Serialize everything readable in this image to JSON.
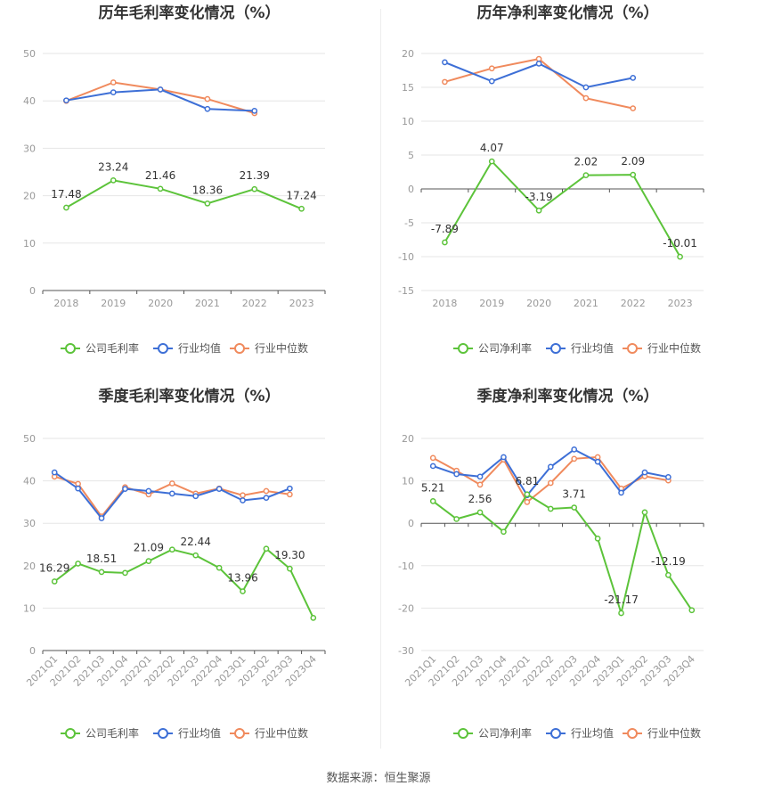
{
  "charts": [
    {
      "id": "p0",
      "title": "历年毛利率变化情况（%）",
      "type": "line",
      "categories": [
        "2018",
        "2019",
        "2020",
        "2021",
        "2022",
        "2023"
      ],
      "ylim": [
        0,
        50
      ],
      "yticks": [
        0,
        10,
        20,
        30,
        40,
        50
      ],
      "series": [
        {
          "name": "公司毛利率",
          "color": "#5cc33a",
          "values": [
            17.48,
            23.24,
            21.46,
            18.36,
            21.39,
            17.24
          ],
          "labels": [
            "17.48",
            "23.24",
            "21.46",
            "18.36",
            "21.39",
            "17.24"
          ]
        },
        {
          "name": "行业均值",
          "color": "#3d6fd6",
          "values": [
            40.1,
            41.8,
            42.4,
            38.3,
            37.9,
            null
          ]
        },
        {
          "name": "行业中位数",
          "color": "#f08a5d",
          "values": [
            40.0,
            43.9,
            42.4,
            40.4,
            37.4,
            null
          ]
        }
      ]
    },
    {
      "id": "p1",
      "title": "历年净利率变化情况（%）",
      "type": "line",
      "categories": [
        "2018",
        "2019",
        "2020",
        "2021",
        "2022",
        "2023"
      ],
      "ylim": [
        -15,
        20
      ],
      "yticks": [
        -15,
        -10,
        -5,
        0,
        5,
        10,
        15,
        20
      ],
      "series": [
        {
          "name": "公司净利率",
          "color": "#5cc33a",
          "values": [
            -7.89,
            4.07,
            -3.19,
            2.02,
            2.09,
            -10.01
          ],
          "labels": [
            "-7.89",
            "4.07",
            "-3.19",
            "2.02",
            "2.09",
            "-10.01"
          ]
        },
        {
          "name": "行业均值",
          "color": "#3d6fd6",
          "values": [
            18.7,
            15.9,
            18.5,
            15.0,
            16.4,
            null
          ]
        },
        {
          "name": "行业中位数",
          "color": "#f08a5d",
          "values": [
            15.8,
            17.8,
            19.2,
            13.4,
            11.9,
            null
          ]
        }
      ]
    },
    {
      "id": "p2",
      "title": "季度毛利率变化情况（%）",
      "type": "line",
      "categories": [
        "2021Q1",
        "2021Q2",
        "2021Q3",
        "2021Q4",
        "2022Q1",
        "2022Q2",
        "2022Q3",
        "2022Q4",
        "2023Q1",
        "2023Q2",
        "2023Q3",
        "2023Q4"
      ],
      "ylim": [
        0,
        50
      ],
      "yticks": [
        0,
        10,
        20,
        30,
        40,
        50
      ],
      "series": [
        {
          "name": "公司毛利率",
          "color": "#5cc33a",
          "values": [
            16.29,
            20.5,
            18.51,
            18.3,
            21.09,
            23.8,
            22.44,
            19.5,
            13.96,
            24.0,
            19.3,
            7.7
          ],
          "labels": [
            "16.29",
            "",
            "18.51",
            "",
            "21.09",
            "",
            "22.44",
            "",
            "13.96",
            "",
            "19.30",
            ""
          ]
        },
        {
          "name": "行业均值",
          "color": "#3d6fd6",
          "values": [
            42.0,
            38.2,
            31.2,
            38.1,
            37.6,
            37.0,
            36.4,
            38.1,
            35.4,
            36.0,
            38.2,
            null
          ]
        },
        {
          "name": "行业中位数",
          "color": "#f08a5d",
          "values": [
            41.0,
            39.3,
            31.6,
            38.5,
            36.8,
            39.4,
            37.0,
            38.2,
            36.6,
            37.6,
            36.8,
            null
          ]
        }
      ]
    },
    {
      "id": "p3",
      "title": "季度净利率变化情况（%）",
      "type": "line",
      "categories": [
        "2021Q1",
        "2021Q2",
        "2021Q3",
        "2021Q4",
        "2022Q1",
        "2022Q2",
        "2022Q3",
        "2022Q4",
        "2023Q1",
        "2023Q2",
        "2023Q3",
        "2023Q4"
      ],
      "ylim": [
        -30,
        20
      ],
      "yticks": [
        -30,
        -20,
        -10,
        0,
        10,
        20
      ],
      "series": [
        {
          "name": "公司净利率",
          "color": "#5cc33a",
          "values": [
            5.21,
            1.0,
            2.56,
            -2.0,
            6.81,
            3.4,
            3.71,
            -3.6,
            -21.17,
            2.6,
            -12.19,
            -20.5
          ],
          "labels": [
            "5.21",
            "",
            "2.56",
            "",
            "6.81",
            "",
            "3.71",
            "",
            "-21.17",
            "",
            "-12.19",
            ""
          ]
        },
        {
          "name": "行业均值",
          "color": "#3d6fd6",
          "values": [
            13.5,
            11.6,
            11.0,
            15.6,
            6.6,
            13.3,
            17.4,
            14.5,
            7.2,
            12.0,
            10.9,
            null
          ]
        },
        {
          "name": "行业中位数",
          "color": "#f08a5d",
          "values": [
            15.4,
            12.4,
            9.1,
            15.0,
            5.0,
            9.5,
            15.2,
            15.6,
            8.2,
            11.1,
            10.1,
            null
          ]
        }
      ]
    }
  ],
  "footer": "数据来源：恒生聚源"
}
